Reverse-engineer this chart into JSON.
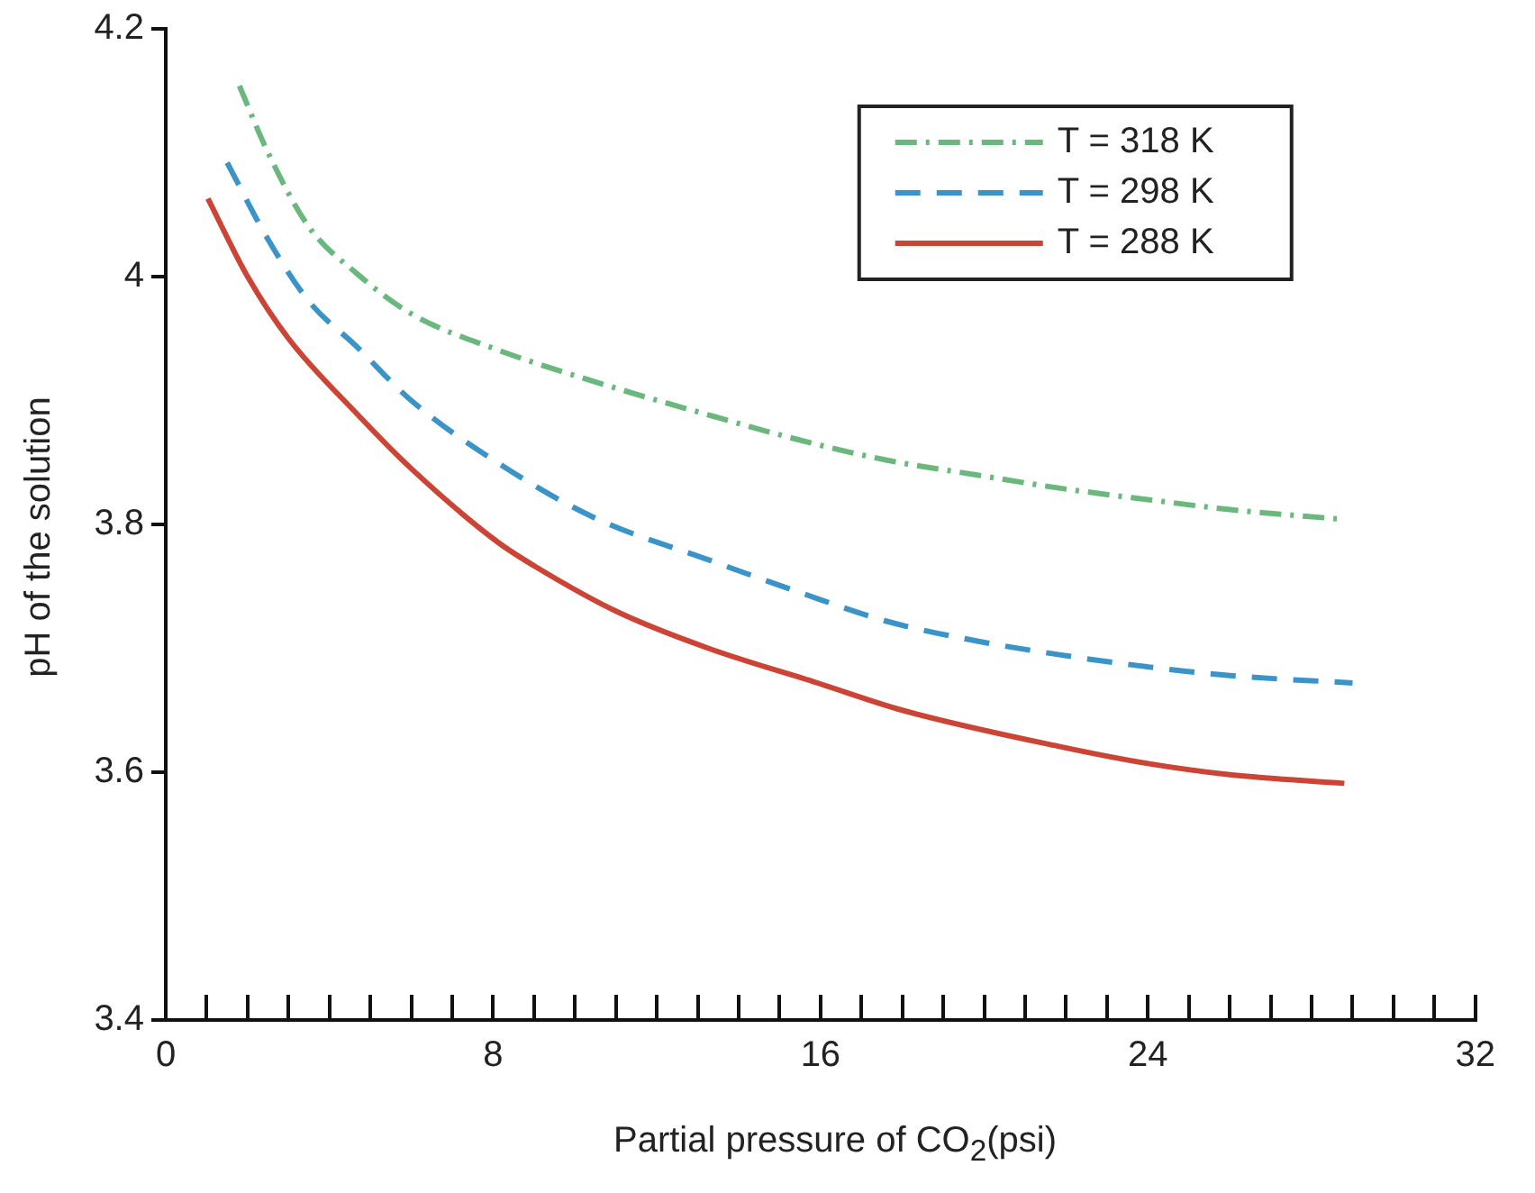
{
  "chart_data": {
    "type": "line",
    "xlabel": "Partial pressure of CO$_{2}$(psi)",
    "ylabel": "pH of the solution",
    "xlim": [
      0,
      32
    ],
    "ylim": [
      3.4,
      4.2
    ],
    "xticks": [
      0,
      {
        "value": 1,
        "label": null
      },
      {
        "value": 2,
        "label": null
      },
      {
        "value": 3,
        "label": null
      },
      {
        "value": 4,
        "label": null
      },
      {
        "value": 5,
        "label": null
      },
      {
        "value": 6,
        "label": null
      },
      {
        "value": 7,
        "label": null
      },
      8,
      {
        "value": 9,
        "label": null
      },
      {
        "value": 10,
        "label": null
      },
      {
        "value": 11,
        "label": null
      },
      {
        "value": 12,
        "label": null
      },
      {
        "value": 13,
        "label": null
      },
      {
        "value": 14,
        "label": null
      },
      {
        "value": 15,
        "label": null
      },
      16,
      {
        "value": 17,
        "label": null
      },
      {
        "value": 18,
        "label": null
      },
      {
        "value": 19,
        "label": null
      },
      {
        "value": 20,
        "label": null
      },
      {
        "value": 21,
        "label": null
      },
      {
        "value": 22,
        "label": null
      },
      {
        "value": 23,
        "label": null
      },
      24,
      {
        "value": 25,
        "label": null
      },
      {
        "value": 26,
        "label": null
      },
      {
        "value": 27,
        "label": null
      },
      {
        "value": 28,
        "label": null
      },
      {
        "value": 29,
        "label": null
      },
      {
        "value": 30,
        "label": null
      },
      {
        "value": 31,
        "label": null
      },
      32
    ],
    "yticks": [
      3.4,
      3.6,
      3.8,
      4,
      4.2
    ],
    "grid": false,
    "legend": "top right",
    "marker": "none",
    "series": [
      {
        "name": "T = 318 K",
        "color": "#6bb87e",
        "line_style": "dashdot",
        "x": [
          1.8,
          2.5,
          3.5,
          4.65,
          6,
          8.1,
          10.5,
          13.3,
          15.5,
          17.6,
          19.8,
          21.9,
          24,
          26,
          28.8
        ],
        "values": [
          4.154,
          4.1,
          4.04,
          4.003,
          3.97,
          3.941,
          3.915,
          3.888,
          3.868,
          3.852,
          3.84,
          3.829,
          3.82,
          3.812,
          3.804
        ]
      },
      {
        "name": "T = 298 K",
        "color": "#3b94c8",
        "line_style": "dashed",
        "x": [
          1.5,
          2.5,
          3.5,
          4.65,
          6,
          8.1,
          10.5,
          13.3,
          15.5,
          17.6,
          19.8,
          21.8,
          24,
          26,
          29
        ],
        "values": [
          4.092,
          4.03,
          3.98,
          3.944,
          3.9,
          3.85,
          3.805,
          3.771,
          3.745,
          3.722,
          3.706,
          3.695,
          3.685,
          3.678,
          3.672
        ]
      },
      {
        "name": "T = 288 K",
        "color": "#cc4435",
        "line_style": "solid",
        "x": [
          1.03,
          2,
          3,
          4.65,
          6,
          8.1,
          9.13,
          11,
          13.26,
          15.93,
          18,
          21.8,
          24,
          26,
          28.8
        ],
        "values": [
          4.063,
          4.0,
          3.95,
          3.89,
          3.845,
          3.786,
          3.764,
          3.73,
          3.7,
          3.672,
          3.65,
          3.621,
          3.607,
          3.598,
          3.591
        ]
      }
    ]
  }
}
